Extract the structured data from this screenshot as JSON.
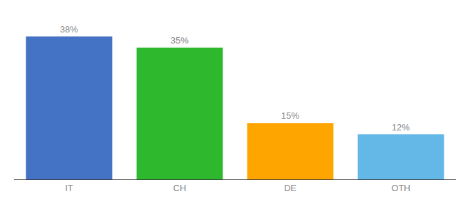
{
  "chart_data": {
    "type": "bar",
    "categories": [
      "IT",
      "CH",
      "DE",
      "OTH"
    ],
    "values": [
      38,
      35,
      15,
      12
    ],
    "value_labels": [
      "38%",
      "35%",
      "15%",
      "12%"
    ],
    "colors": [
      "#4472c4",
      "#2db82d",
      "#ffa500",
      "#64b8e8"
    ],
    "ylim": [
      0,
      44
    ],
    "tick_labels": "x",
    "data_labels": true,
    "grid": false
  }
}
